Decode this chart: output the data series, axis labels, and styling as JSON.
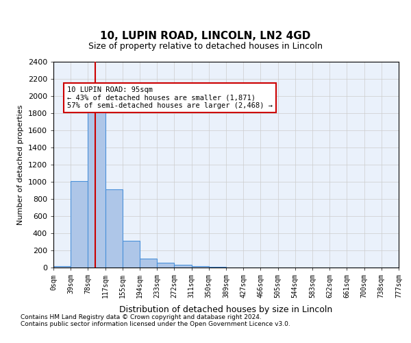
{
  "title1": "10, LUPIN ROAD, LINCOLN, LN2 4GD",
  "title2": "Size of property relative to detached houses in Lincoln",
  "xlabel": "Distribution of detached houses by size in Lincoln",
  "ylabel": "Number of detached properties",
  "bin_labels": [
    "0sqm",
    "39sqm",
    "78sqm",
    "117sqm",
    "155sqm",
    "194sqm",
    "233sqm",
    "272sqm",
    "311sqm",
    "350sqm",
    "389sqm",
    "427sqm",
    "466sqm",
    "505sqm",
    "544sqm",
    "583sqm",
    "622sqm",
    "661sqm",
    "700sqm",
    "738sqm",
    "777sqm"
  ],
  "bar_values": [
    15,
    1010,
    1900,
    910,
    310,
    105,
    55,
    30,
    20,
    5,
    3,
    2,
    1,
    1,
    0,
    0,
    0,
    0,
    0,
    0
  ],
  "bar_color": "#aec6e8",
  "bar_edge_color": "#4a90d9",
  "property_line_x": 2.44,
  "property_line_color": "#cc0000",
  "annotation_text": "10 LUPIN ROAD: 95sqm\n← 43% of detached houses are smaller (1,871)\n57% of semi-detached houses are larger (2,468) →",
  "annotation_box_color": "#cc0000",
  "ylim": [
    0,
    2400
  ],
  "yticks": [
    0,
    200,
    400,
    600,
    800,
    1000,
    1200,
    1400,
    1600,
    1800,
    2000,
    2200,
    2400
  ],
  "grid_color": "#cccccc",
  "bg_color": "#eaf1fb",
  "plot_bg": "#eaf1fb",
  "footer1": "Contains HM Land Registry data © Crown copyright and database right 2024.",
  "footer2": "Contains public sector information licensed under the Open Government Licence v3.0."
}
